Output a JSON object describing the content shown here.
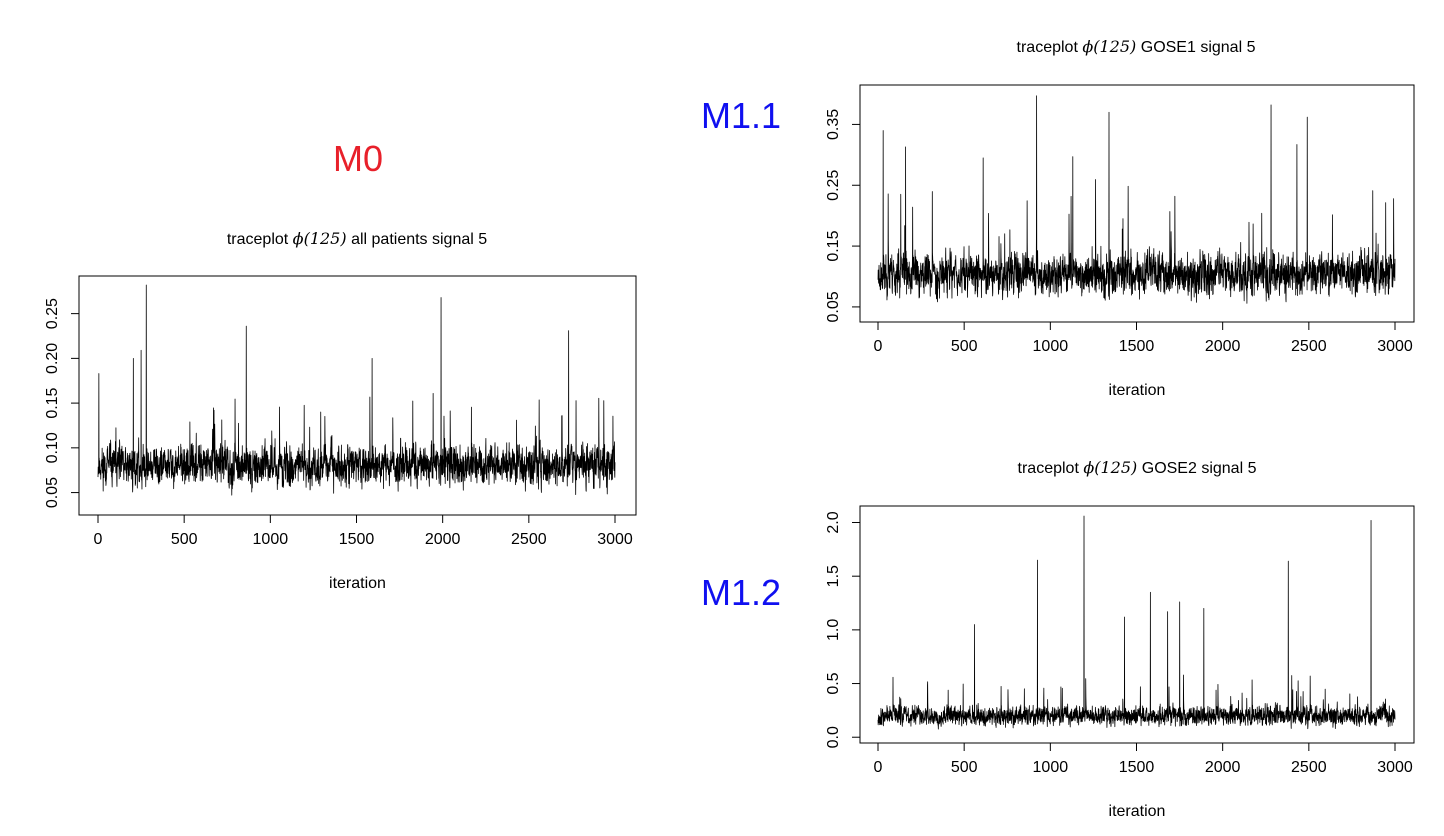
{
  "labels": [
    {
      "text": "M0",
      "color": "#e8202a"
    },
    {
      "text": "M1.1",
      "color": "#1010f0"
    },
    {
      "text": "M1.2",
      "color": "#1010f0"
    }
  ],
  "chart_data": [
    {
      "type": "line",
      "title_prefix": "traceplot",
      "title_symbol": "ϕ(125)",
      "title_suffix": "all patients signal 5",
      "xlabel": "iteration",
      "ylabel": "",
      "xlim": [
        0,
        3000
      ],
      "ylim": [
        0.035,
        0.282
      ],
      "xticks": [
        0,
        500,
        1000,
        1500,
        2000,
        2500,
        3000
      ],
      "yticks": [
        0.05,
        0.1,
        0.15,
        0.2,
        0.25
      ],
      "ytick_labels": [
        "0.05",
        "0.10",
        "0.15",
        "0.20",
        "0.25"
      ],
      "n_iter": 3000,
      "baseline": 0.08,
      "spread": 0.022,
      "floor": 0.035,
      "seed": 11,
      "spikes": [
        [
          5,
          0.183
        ],
        [
          205,
          0.2
        ],
        [
          250,
          0.209
        ],
        [
          280,
          0.282
        ],
        [
          860,
          0.236
        ],
        [
          1590,
          0.2
        ],
        [
          1990,
          0.268
        ],
        [
          2730,
          0.231
        ]
      ],
      "series_color": "#000000"
    },
    {
      "type": "line",
      "title_prefix": "traceplot",
      "title_symbol": "ϕ(125)",
      "title_suffix": "GOSE1 signal 5",
      "xlabel": "iteration",
      "ylabel": "",
      "xlim": [
        0,
        3000
      ],
      "ylim": [
        0.04,
        0.4
      ],
      "xticks": [
        0,
        500,
        1000,
        1500,
        2000,
        2500,
        3000
      ],
      "yticks": [
        0.05,
        0.15,
        0.25,
        0.35
      ],
      "ytick_labels": [
        "0.05",
        "0.15",
        "0.25",
        "0.35"
      ],
      "n_iter": 3000,
      "baseline": 0.105,
      "spread": 0.035,
      "floor": 0.042,
      "seed": 23,
      "spikes": [
        [
          30,
          0.34
        ],
        [
          160,
          0.313
        ],
        [
          610,
          0.295
        ],
        [
          920,
          0.397
        ],
        [
          1130,
          0.297
        ],
        [
          1340,
          0.37
        ],
        [
          2280,
          0.382
        ],
        [
          2430,
          0.317
        ],
        [
          2490,
          0.362
        ]
      ],
      "series_color": "#000000"
    },
    {
      "type": "line",
      "title_prefix": "traceplot",
      "title_symbol": "ϕ(125)",
      "title_suffix": "GOSE2 signal 5",
      "xlabel": "iteration",
      "ylabel": "",
      "xlim": [
        0,
        3000
      ],
      "ylim": [
        0.03,
        2.07
      ],
      "xticks": [
        0,
        500,
        1000,
        1500,
        2000,
        2500,
        3000
      ],
      "yticks": [
        0.0,
        0.5,
        1.0,
        1.5,
        2.0
      ],
      "ytick_labels": [
        "0.0",
        "0.5",
        "1.0",
        "1.5",
        "2.0"
      ],
      "n_iter": 3000,
      "baseline": 0.2,
      "spread": 0.09,
      "floor": 0.04,
      "seed": 37,
      "spikes": [
        [
          560,
          1.05
        ],
        [
          925,
          1.65
        ],
        [
          1195,
          2.06
        ],
        [
          1430,
          1.12
        ],
        [
          1580,
          1.35
        ],
        [
          1680,
          1.17
        ],
        [
          1750,
          1.26
        ],
        [
          1890,
          1.2
        ],
        [
          2380,
          1.64
        ],
        [
          2860,
          2.02
        ]
      ],
      "series_color": "#000000"
    }
  ]
}
